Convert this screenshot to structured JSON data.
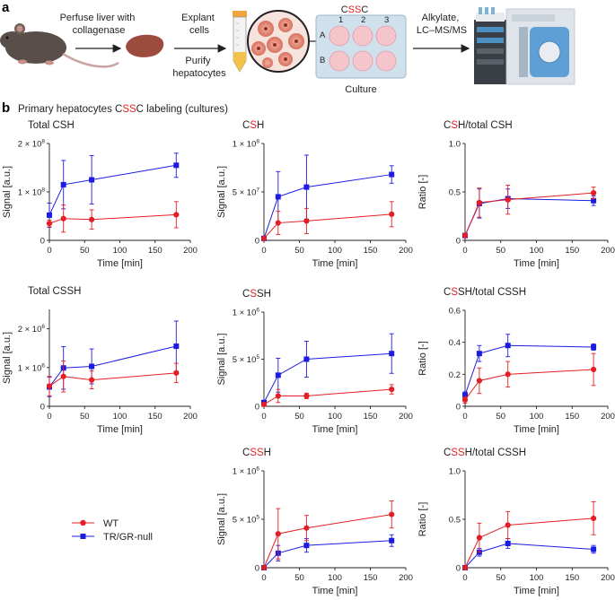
{
  "panel_a": {
    "letter": "a",
    "step1": [
      "Perfuse liver with",
      "collagenase"
    ],
    "step2a": [
      "Explant",
      "cells"
    ],
    "step2b": [
      "Purify",
      "hepatocytes"
    ],
    "plate_title": {
      "pre": "C",
      "hi": "SS",
      "post": "C"
    },
    "plate_cols": [
      "1",
      "2",
      "3"
    ],
    "plate_rows": [
      "A",
      "B"
    ],
    "plate_caption": "Culture",
    "step3": [
      "Alkylate,",
      "LC–MS/MS"
    ]
  },
  "panel_b": {
    "letter": "b",
    "title": {
      "pre": "Primary hepatocytes C",
      "hi": "SS",
      "post": "C labeling (cultures)"
    }
  },
  "legend": {
    "wt": "WT",
    "ko": "TR/GR-null"
  },
  "colors": {
    "wt": "#e31e24",
    "ko": "#1c1ce0",
    "highlight": "#e31e24"
  },
  "chart_data": [
    {
      "type": "line",
      "id": "total-csh",
      "title": {
        "pre": "Total CSH",
        "hi": "",
        "post": ""
      },
      "xlabel": "Time [min]",
      "ylabel": "Signal [a.u.]",
      "xlim": [
        0,
        200
      ],
      "ylim": [
        0,
        200000000
      ],
      "x_ticks": [
        "0",
        "50",
        "100",
        "150",
        "200"
      ],
      "y_ticks": [
        {
          "value": 0,
          "base": "0",
          "exp": ""
        },
        {
          "value": 100000000,
          "base": "1 × 10",
          "exp": "8"
        },
        {
          "value": 200000000,
          "base": "2 × 10",
          "exp": "8"
        }
      ],
      "x": [
        0,
        20,
        60,
        180
      ],
      "series": [
        {
          "name": "WT",
          "values": [
            35000000,
            45000000,
            43000000,
            53000000
          ],
          "errors": [
            7000000,
            28000000,
            20000000,
            27000000
          ]
        },
        {
          "name": "TR/GR-null",
          "values": [
            52000000,
            115000000,
            125000000,
            155000000
          ],
          "errors": [
            25000000,
            50000000,
            50000000,
            25000000
          ]
        }
      ]
    },
    {
      "type": "line",
      "id": "c-s-h",
      "title": {
        "pre": "C",
        "hi": "S",
        "post": "H"
      },
      "xlabel": "Time [min]",
      "ylabel": "Signal [a.u.]",
      "xlim": [
        0,
        200
      ],
      "ylim": [
        0,
        100000000
      ],
      "x_ticks": [
        "0",
        "50",
        "100",
        "150",
        "200"
      ],
      "y_ticks": [
        {
          "value": 0,
          "base": "0",
          "exp": ""
        },
        {
          "value": 50000000,
          "base": "5 × 10",
          "exp": "7"
        },
        {
          "value": 100000000,
          "base": "1 × 10",
          "exp": "8"
        }
      ],
      "x": [
        0,
        20,
        60,
        180
      ],
      "series": [
        {
          "name": "WT",
          "values": [
            2000000,
            18000000,
            20000000,
            27000000
          ],
          "errors": [
            1000000,
            12000000,
            13000000,
            13000000
          ]
        },
        {
          "name": "TR/GR-null",
          "values": [
            2000000,
            45000000,
            55000000,
            68000000
          ],
          "errors": [
            1000000,
            26000000,
            33000000,
            9000000
          ]
        }
      ]
    },
    {
      "type": "line",
      "id": "c-s-h-ratio",
      "title": {
        "pre": "C",
        "hi": "S",
        "post": "H/total CSH"
      },
      "xlabel": "Time [min]",
      "ylabel": "Ratio [-]",
      "xlim": [
        0,
        200
      ],
      "ylim": [
        0,
        1.0
      ],
      "x_ticks": [
        "0",
        "50",
        "100",
        "150",
        "200"
      ],
      "y_ticks": [
        {
          "value": 0,
          "base": "0",
          "exp": ""
        },
        {
          "value": 0.5,
          "base": "0.5",
          "exp": ""
        },
        {
          "value": 1.0,
          "base": "1.0",
          "exp": ""
        }
      ],
      "x": [
        0,
        20,
        60,
        180
      ],
      "series": [
        {
          "name": "WT",
          "values": [
            0.05,
            0.39,
            0.42,
            0.49
          ],
          "errors": [
            0.01,
            0.15,
            0.15,
            0.06
          ]
        },
        {
          "name": "TR/GR-null",
          "values": [
            0.05,
            0.38,
            0.43,
            0.41
          ],
          "errors": [
            0.01,
            0.15,
            0.1,
            0.05
          ]
        }
      ]
    },
    {
      "type": "line",
      "id": "total-cssh",
      "title": {
        "pre": "Total CSSH",
        "hi": "",
        "post": ""
      },
      "xlabel": "Time [min]",
      "ylabel": "Signal [a.u.]",
      "xlim": [
        0,
        200
      ],
      "ylim": [
        0,
        2500000
      ],
      "x_ticks": [
        "0",
        "50",
        "100",
        "150",
        "200"
      ],
      "y_ticks": [
        {
          "value": 0,
          "base": "0",
          "exp": ""
        },
        {
          "value": 1000000,
          "base": "1 × 10",
          "exp": "6"
        },
        {
          "value": 2000000,
          "base": "2 × 10",
          "exp": "6"
        }
      ],
      "x": [
        0,
        20,
        60,
        180
      ],
      "series": [
        {
          "name": "WT",
          "values": [
            520000,
            770000,
            680000,
            860000
          ],
          "errors": [
            250000,
            400000,
            230000,
            250000
          ]
        },
        {
          "name": "TR/GR-null",
          "values": [
            500000,
            990000,
            1030000,
            1550000
          ],
          "errors": [
            250000,
            550000,
            450000,
            650000
          ]
        }
      ]
    },
    {
      "type": "line",
      "id": "c-ss-h",
      "title": {
        "pre": "C",
        "hi": "S",
        "post": "SH"
      },
      "xlabel": "Time [min]",
      "ylabel": "Signal [a.u.]",
      "xlim": [
        0,
        200
      ],
      "ylim": [
        0,
        1000000
      ],
      "x_ticks": [
        "0",
        "50",
        "100",
        "150",
        "200"
      ],
      "y_ticks": [
        {
          "value": 0,
          "base": "0",
          "exp": ""
        },
        {
          "value": 500000,
          "base": "5 × 10",
          "exp": "5"
        },
        {
          "value": 1000000,
          "base": "1 × 10",
          "exp": "6"
        }
      ],
      "x": [
        0,
        20,
        60,
        180
      ],
      "series": [
        {
          "name": "WT",
          "values": [
            20000,
            110000,
            110000,
            180000
          ],
          "errors": [
            10000,
            70000,
            30000,
            50000
          ]
        },
        {
          "name": "TR/GR-null",
          "values": [
            40000,
            330000,
            500000,
            560000
          ],
          "errors": [
            20000,
            180000,
            190000,
            210000
          ]
        }
      ]
    },
    {
      "type": "line",
      "id": "c-ss-h-ratio",
      "title": {
        "pre": "C",
        "hi": "S",
        "post": "SH/total CSSH"
      },
      "xlabel": "Time [min]",
      "ylabel": "Ratio [-]",
      "xlim": [
        0,
        200
      ],
      "ylim": [
        0,
        0.6
      ],
      "x_ticks": [
        "0",
        "50",
        "100",
        "150",
        "200"
      ],
      "y_ticks": [
        {
          "value": 0,
          "base": "0",
          "exp": ""
        },
        {
          "value": 0.2,
          "base": "0.2",
          "exp": ""
        },
        {
          "value": 0.4,
          "base": "0.4",
          "exp": ""
        },
        {
          "value": 0.6,
          "base": "0.6",
          "exp": ""
        }
      ],
      "x": [
        0,
        20,
        60,
        180
      ],
      "series": [
        {
          "name": "WT",
          "values": [
            0.04,
            0.16,
            0.2,
            0.23
          ],
          "errors": [
            0.02,
            0.08,
            0.08,
            0.1
          ]
        },
        {
          "name": "TR/GR-null",
          "values": [
            0.07,
            0.33,
            0.38,
            0.37
          ],
          "errors": [
            0.02,
            0.05,
            0.07,
            0.02
          ]
        }
      ]
    },
    {
      "type": "line",
      "id": "c-ss-h-2",
      "title": {
        "pre": "C",
        "hi": "SS",
        "post": "H"
      },
      "xlabel": "Time [min]",
      "ylabel": "Signal [a.u.]",
      "xlim": [
        0,
        200
      ],
      "ylim": [
        0,
        1000000
      ],
      "x_ticks": [
        "0",
        "50",
        "100",
        "150",
        "200"
      ],
      "y_ticks": [
        {
          "value": 0,
          "base": "0",
          "exp": ""
        },
        {
          "value": 500000,
          "base": "5 × 10",
          "exp": "5"
        },
        {
          "value": 1000000,
          "base": "1 × 10",
          "exp": "6"
        }
      ],
      "x": [
        0,
        20,
        60,
        180
      ],
      "series": [
        {
          "name": "WT",
          "values": [
            0,
            350000,
            410000,
            550000
          ],
          "errors": [
            5000,
            260000,
            130000,
            140000
          ]
        },
        {
          "name": "TR/GR-null",
          "values": [
            0,
            150000,
            230000,
            280000
          ],
          "errors": [
            5000,
            80000,
            70000,
            60000
          ]
        }
      ]
    },
    {
      "type": "line",
      "id": "c-ss-h-2-ratio",
      "title": {
        "pre": "C",
        "hi": "SS",
        "post": "H/total CSSH"
      },
      "xlabel": "Time [min]",
      "ylabel": "Ratio [-]",
      "xlim": [
        0,
        200
      ],
      "ylim": [
        0,
        1.0
      ],
      "x_ticks": [
        "0",
        "50",
        "100",
        "150",
        "200"
      ],
      "y_ticks": [
        {
          "value": 0,
          "base": "0",
          "exp": ""
        },
        {
          "value": 0.5,
          "base": "0.5",
          "exp": ""
        },
        {
          "value": 1.0,
          "base": "1.0",
          "exp": ""
        }
      ],
      "x": [
        0,
        20,
        60,
        180
      ],
      "series": [
        {
          "name": "WT",
          "values": [
            0,
            0.31,
            0.44,
            0.51
          ],
          "errors": [
            0.01,
            0.15,
            0.14,
            0.17
          ]
        },
        {
          "name": "TR/GR-null",
          "values": [
            0,
            0.16,
            0.25,
            0.19
          ],
          "errors": [
            0.01,
            0.04,
            0.05,
            0.04
          ]
        }
      ]
    }
  ]
}
